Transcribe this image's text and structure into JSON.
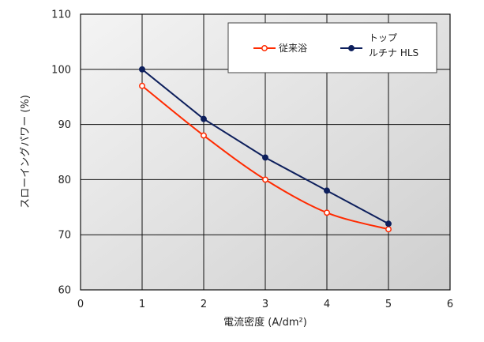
{
  "chart_data": {
    "type": "line",
    "title": "",
    "xlabel": "電流密度 (A/dm²)",
    "ylabel": "スローイングパワー (%)",
    "xlim": [
      0,
      6
    ],
    "ylim": [
      60,
      110
    ],
    "xticks": [
      0,
      1,
      2,
      3,
      4,
      5,
      6
    ],
    "yticks": [
      60,
      70,
      80,
      90,
      100,
      110
    ],
    "grid": true,
    "legend_position": "top-right",
    "series": [
      {
        "name": "従来浴",
        "color": "#ff2a00",
        "x": [
          1,
          2,
          3,
          4,
          5
        ],
        "values": [
          97,
          88,
          80,
          74,
          71
        ]
      },
      {
        "name_lines": [
          "トップ",
          "ルチナ HLS"
        ],
        "color": "#0d1f5c",
        "x": [
          1,
          2,
          3,
          4,
          5
        ],
        "values": [
          100,
          91,
          84,
          78,
          72
        ]
      }
    ]
  }
}
